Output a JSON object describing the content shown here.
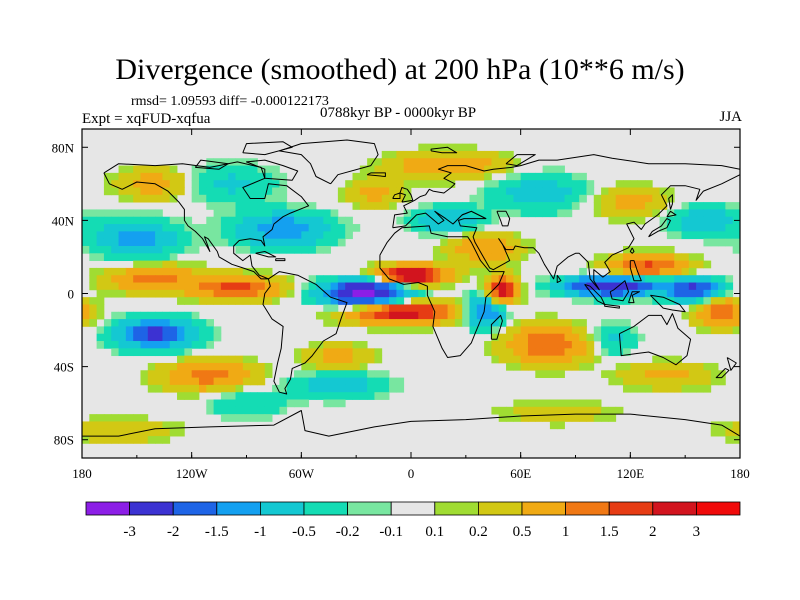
{
  "title": "Divergence (smoothed) at 200 hPa (10**6 m/s)",
  "stats": "rmsd= 1.09593 diff= -0.000122173",
  "experiment": "Expt = xqFUD-xqfua",
  "period": "0788kyr BP - 0000kyr BP",
  "season": "JJA",
  "map": {
    "projection": "cylindrical-equidistant",
    "lon_range": [
      -180,
      180
    ],
    "lat_range": [
      -90,
      90
    ],
    "x_ticks": [
      {
        "value": -180,
        "label": "180"
      },
      {
        "value": -120,
        "label": "120W"
      },
      {
        "value": -60,
        "label": "60W"
      },
      {
        "value": 0,
        "label": "0"
      },
      {
        "value": 60,
        "label": "60E"
      },
      {
        "value": 120,
        "label": "120E"
      },
      {
        "value": 180,
        "label": "180"
      }
    ],
    "y_ticks": [
      {
        "value": 80,
        "label": "80N"
      },
      {
        "value": 40,
        "label": "40N"
      },
      {
        "value": 0,
        "label": "0"
      },
      {
        "value": -40,
        "label": "40S"
      },
      {
        "value": -80,
        "label": "80S"
      }
    ],
    "background_color": "#e6e6e6",
    "coastline_color": "#000000"
  },
  "colorbar": {
    "labels": [
      "-3",
      "-2",
      "-1.5",
      "-1",
      "-0.5",
      "-0.2",
      "-0.1",
      "0.1",
      "0.2",
      "0.5",
      "1",
      "1.5",
      "2",
      "3"
    ],
    "colors": [
      "#8c1ee6",
      "#3c32d2",
      "#1e64e6",
      "#14a0f0",
      "#14c8d2",
      "#14dcb4",
      "#78e6a0",
      "#e6e6e6",
      "#a0dc32",
      "#d2c814",
      "#f0aa14",
      "#f07814",
      "#e63c14",
      "#d2141e",
      "#f00a0a"
    ]
  },
  "chart_data": {
    "type": "heatmap",
    "title": "Divergence (smoothed) at 200 hPa (10**6 m/s)",
    "levels": [
      -3,
      -2,
      -1.5,
      -1,
      -0.5,
      -0.2,
      -0.1,
      0.1,
      0.2,
      0.5,
      1,
      1.5,
      2,
      3
    ],
    "xlim": [
      -180,
      180
    ],
    "ylim": [
      -90,
      90
    ],
    "blobs": [
      {
        "lon": -25,
        "lat": 0,
        "value": -3.4,
        "rlon": 22,
        "rlat": 7
      },
      {
        "lon": 110,
        "lat": 4,
        "value": -3.0,
        "rlon": 25,
        "rlat": 5
      },
      {
        "lon": 155,
        "lat": 2,
        "value": -2.2,
        "rlon": 15,
        "rlat": 6
      },
      {
        "lon": -140,
        "lat": -22,
        "value": -2.2,
        "rlon": 20,
        "rlat": 8
      },
      {
        "lon": -150,
        "lat": 30,
        "value": -1.2,
        "rlon": 22,
        "rlat": 10
      },
      {
        "lon": -70,
        "lat": 35,
        "value": -1.4,
        "rlon": 25,
        "rlat": 9
      },
      {
        "lon": 40,
        "lat": -10,
        "value": -1.8,
        "rlon": 10,
        "rlat": 8
      },
      {
        "lon": 20,
        "lat": 40,
        "value": -1.0,
        "rlon": 18,
        "rlat": 7
      },
      {
        "lon": 70,
        "lat": 55,
        "value": -0.8,
        "rlon": 25,
        "rlat": 10
      },
      {
        "lon": -100,
        "lat": 60,
        "value": -0.6,
        "rlon": 25,
        "rlat": 10
      },
      {
        "lon": 160,
        "lat": 40,
        "value": -0.9,
        "rlon": 18,
        "rlat": 8
      },
      {
        "lon": -40,
        "lat": -50,
        "value": -0.8,
        "rlon": 25,
        "rlat": 7
      },
      {
        "lon": 110,
        "lat": -25,
        "value": -0.7,
        "rlon": 12,
        "rlat": 8
      },
      {
        "lon": -90,
        "lat": -60,
        "value": -0.5,
        "rlon": 20,
        "rlat": 8
      },
      {
        "lon": 0,
        "lat": 10,
        "value": 2.8,
        "rlon": 18,
        "rlat": 5
      },
      {
        "lon": -5,
        "lat": -10,
        "value": 2.5,
        "rlon": 28,
        "rlat": 6
      },
      {
        "lon": 50,
        "lat": 2,
        "value": 2.4,
        "rlon": 8,
        "rlat": 7
      },
      {
        "lon": -95,
        "lat": 3,
        "value": 1.8,
        "rlon": 22,
        "rlat": 6
      },
      {
        "lon": -140,
        "lat": 8,
        "value": 1.2,
        "rlon": 25,
        "rlat": 7
      },
      {
        "lon": 130,
        "lat": 15,
        "value": 1.6,
        "rlon": 20,
        "rlat": 6
      },
      {
        "lon": 170,
        "lat": -10,
        "value": 1.3,
        "rlon": 14,
        "rlat": 8
      },
      {
        "lon": 75,
        "lat": -28,
        "value": 1.4,
        "rlon": 22,
        "rlat": 10
      },
      {
        "lon": -110,
        "lat": -45,
        "value": 1.2,
        "rlon": 25,
        "rlat": 8
      },
      {
        "lon": 40,
        "lat": 25,
        "value": 1.0,
        "rlon": 18,
        "rlat": 8
      },
      {
        "lon": 20,
        "lat": 70,
        "value": 1.0,
        "rlon": 30,
        "rlat": 7
      },
      {
        "lon": -140,
        "lat": 60,
        "value": 0.8,
        "rlon": 20,
        "rlat": 8
      },
      {
        "lon": 120,
        "lat": 50,
        "value": 0.7,
        "rlon": 20,
        "rlat": 8
      },
      {
        "lon": -20,
        "lat": 55,
        "value": 0.6,
        "rlon": 15,
        "rlat": 8
      },
      {
        "lon": -40,
        "lat": -35,
        "value": 0.7,
        "rlon": 18,
        "rlat": 7
      },
      {
        "lon": 140,
        "lat": -45,
        "value": 0.6,
        "rlon": 25,
        "rlat": 7
      },
      {
        "lon": -160,
        "lat": -75,
        "value": 0.5,
        "rlon": 30,
        "rlat": 6
      },
      {
        "lon": 80,
        "lat": -65,
        "value": 0.4,
        "rlon": 30,
        "rlat": 6
      }
    ]
  }
}
